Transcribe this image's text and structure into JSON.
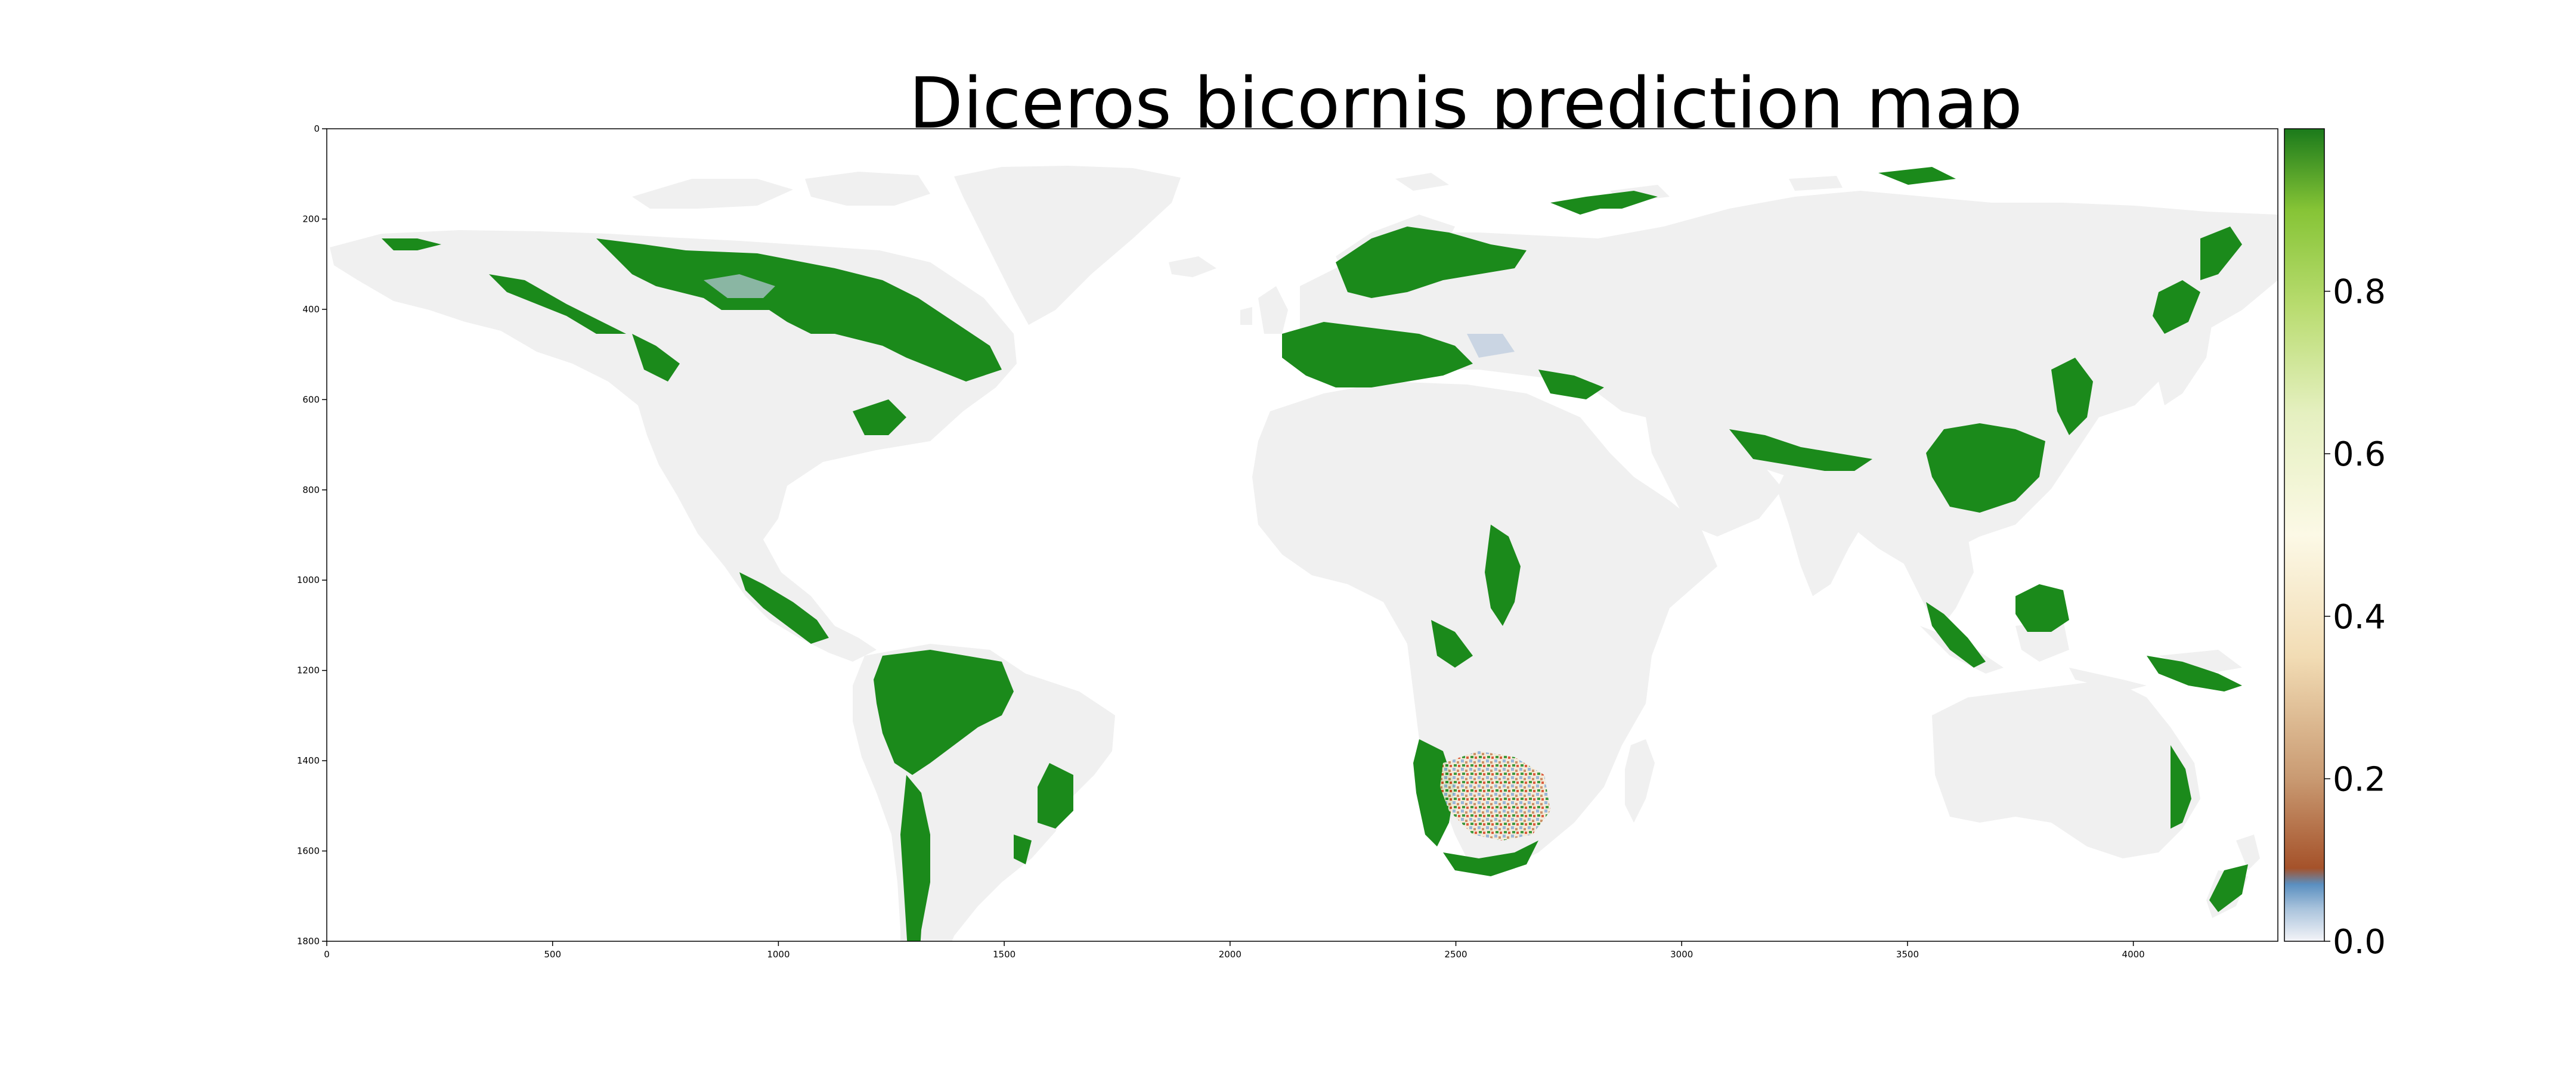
{
  "title": "Diceros bicornis prediction map",
  "map": {
    "x_ticks": [
      "0",
      "500",
      "1000",
      "1500",
      "2000",
      "2500",
      "3000",
      "3500",
      "4000"
    ],
    "y_ticks": [
      "0",
      "200",
      "400",
      "600",
      "800",
      "1000",
      "1200",
      "1400",
      "1600",
      "1800"
    ],
    "x_range": [
      0,
      4320
    ],
    "y_range": [
      0,
      1800
    ],
    "y_axis_inverted": true,
    "land_color": "#f0f0f0",
    "ocean_color": "#ffffff",
    "high_suitability_color": "#1b8a1b"
  },
  "colorbar": {
    "tick_labels": [
      "0.0",
      "0.2",
      "0.4",
      "0.6",
      "0.8"
    ],
    "range": [
      0,
      1
    ],
    "colormap": [
      {
        "value": 0.0,
        "color": "#f4f4f8"
      },
      {
        "value": 0.04,
        "color": "#a9c3dc"
      },
      {
        "value": 0.07,
        "color": "#5a8fc0"
      },
      {
        "value": 0.09,
        "color": "#a5522a"
      },
      {
        "value": 0.2,
        "color": "#c99a72"
      },
      {
        "value": 0.35,
        "color": "#f2dcb4"
      },
      {
        "value": 0.5,
        "color": "#fcf9e6"
      },
      {
        "value": 0.65,
        "color": "#e5f0c0"
      },
      {
        "value": 0.78,
        "color": "#b9dc70"
      },
      {
        "value": 0.9,
        "color": "#86c436"
      },
      {
        "value": 1.0,
        "color": "#1b7a1b"
      }
    ]
  }
}
